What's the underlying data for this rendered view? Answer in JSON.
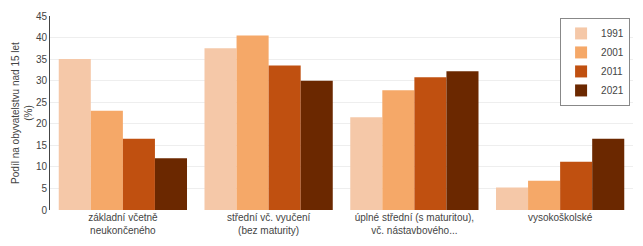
{
  "chart_data": {
    "type": "bar",
    "categories": [
      "základní včetně\nneukončeného",
      "střední vč. vyučení\n(bez maturity)",
      "úplné střední (s maturitou),\nvč. nástavbového...",
      "vysokoškolské"
    ],
    "series": [
      {
        "name": "1991",
        "color": "#f5c8a8",
        "values": [
          35.0,
          37.5,
          21.5,
          5.2
        ]
      },
      {
        "name": "2001",
        "color": "#f5a868",
        "values": [
          23.0,
          40.5,
          27.8,
          6.8
        ]
      },
      {
        "name": "2011",
        "color": "#c05010",
        "values": [
          16.5,
          33.5,
          30.8,
          11.2
        ]
      },
      {
        "name": "2021",
        "color": "#6b2800",
        "values": [
          12.0,
          30.0,
          32.2,
          16.5
        ]
      }
    ],
    "ylabel": "Podíl na obyvatelstvu nad 15 let\n(%)",
    "ylim": [
      0,
      45
    ],
    "yticks": [
      0,
      5,
      10,
      15,
      20,
      25,
      30,
      35,
      40,
      45
    ],
    "grid": true,
    "legend": "upper right"
  }
}
